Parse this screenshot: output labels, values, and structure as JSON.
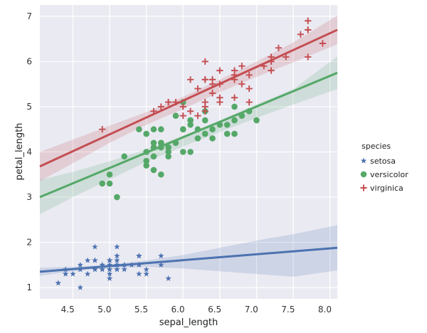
{
  "chart_data": {
    "type": "scatter",
    "xlabel": "sepal_length",
    "ylabel": "petal_length",
    "xlim": [
      4.05,
      8.1
    ],
    "ylim": [
      0.75,
      7.25
    ],
    "xticks": [
      "4.5",
      "5.0",
      "5.5",
      "6.0",
      "6.5",
      "7.0",
      "7.5",
      "8.0"
    ],
    "xtick_values": [
      4.5,
      5.0,
      5.5,
      6.0,
      6.5,
      7.0,
      7.5,
      8.0
    ],
    "xtick_label_offset": -0.07,
    "yticks": [
      "1",
      "2",
      "3",
      "4",
      "5",
      "6",
      "7"
    ],
    "ytick_values": [
      1,
      2,
      3,
      4,
      5,
      6,
      7
    ],
    "grid": true,
    "legend_placement": "right",
    "legend_title": "species",
    "series": [
      {
        "name": "setosa",
        "marker": "star",
        "color": "#4c72b0",
        "points": [
          [
            5.1,
            1.4
          ],
          [
            4.9,
            1.4
          ],
          [
            4.7,
            1.3
          ],
          [
            4.6,
            1.5
          ],
          [
            5.0,
            1.4
          ],
          [
            5.4,
            1.7
          ],
          [
            4.6,
            1.4
          ],
          [
            5.0,
            1.5
          ],
          [
            4.4,
            1.4
          ],
          [
            4.9,
            1.5
          ],
          [
            5.4,
            1.5
          ],
          [
            4.8,
            1.6
          ],
          [
            4.8,
            1.4
          ],
          [
            4.3,
            1.1
          ],
          [
            5.8,
            1.2
          ],
          [
            5.7,
            1.5
          ],
          [
            5.4,
            1.3
          ],
          [
            5.1,
            1.4
          ],
          [
            5.7,
            1.7
          ],
          [
            5.1,
            1.5
          ],
          [
            5.4,
            1.7
          ],
          [
            5.1,
            1.5
          ],
          [
            4.6,
            1.0
          ],
          [
            5.1,
            1.7
          ],
          [
            4.8,
            1.9
          ],
          [
            5.0,
            1.6
          ],
          [
            5.0,
            1.6
          ],
          [
            5.2,
            1.5
          ],
          [
            5.2,
            1.4
          ],
          [
            4.7,
            1.6
          ],
          [
            4.8,
            1.6
          ],
          [
            5.4,
            1.5
          ],
          [
            5.2,
            1.5
          ],
          [
            5.5,
            1.4
          ],
          [
            4.9,
            1.5
          ],
          [
            5.0,
            1.2
          ],
          [
            5.5,
            1.3
          ],
          [
            4.9,
            1.4
          ],
          [
            4.4,
            1.3
          ],
          [
            5.1,
            1.5
          ],
          [
            5.0,
            1.3
          ],
          [
            4.5,
            1.3
          ],
          [
            4.4,
            1.3
          ],
          [
            5.0,
            1.6
          ],
          [
            5.1,
            1.9
          ],
          [
            4.8,
            1.4
          ],
          [
            5.1,
            1.6
          ],
          [
            4.6,
            1.4
          ],
          [
            5.3,
            1.5
          ],
          [
            5.0,
            1.4
          ]
        ],
        "fit": [
          [
            4.05,
            1.35
          ],
          [
            8.1,
            1.88
          ]
        ],
        "band_x": [
          4.05,
          4.5,
          5.0,
          5.5,
          6.0,
          6.5,
          7.0,
          7.5,
          8.1
        ],
        "band_lo": [
          1.26,
          1.36,
          1.43,
          1.46,
          1.42,
          1.36,
          1.3,
          1.24,
          1.38
        ],
        "band_hi": [
          1.44,
          1.46,
          1.51,
          1.6,
          1.72,
          1.88,
          2.04,
          2.18,
          2.38
        ]
      },
      {
        "name": "versicolor",
        "marker": "circle",
        "color": "#55a868",
        "points": [
          [
            7.0,
            4.7
          ],
          [
            6.4,
            4.5
          ],
          [
            6.9,
            4.9
          ],
          [
            5.5,
            4.0
          ],
          [
            6.5,
            4.6
          ],
          [
            5.7,
            4.5
          ],
          [
            6.3,
            4.7
          ],
          [
            4.9,
            3.3
          ],
          [
            6.6,
            4.6
          ],
          [
            5.2,
            3.9
          ],
          [
            5.0,
            3.5
          ],
          [
            5.9,
            4.2
          ],
          [
            6.0,
            4.0
          ],
          [
            6.1,
            4.7
          ],
          [
            5.6,
            3.6
          ],
          [
            6.7,
            4.4
          ],
          [
            5.6,
            4.5
          ],
          [
            5.8,
            4.1
          ],
          [
            6.2,
            4.5
          ],
          [
            5.6,
            3.9
          ],
          [
            5.9,
            4.8
          ],
          [
            6.1,
            4.0
          ],
          [
            6.3,
            4.9
          ],
          [
            6.1,
            4.7
          ],
          [
            6.4,
            4.3
          ],
          [
            6.6,
            4.4
          ],
          [
            6.8,
            4.8
          ],
          [
            6.7,
            5.0
          ],
          [
            6.0,
            4.5
          ],
          [
            5.7,
            3.5
          ],
          [
            5.5,
            3.8
          ],
          [
            5.5,
            3.7
          ],
          [
            5.8,
            3.9
          ],
          [
            6.0,
            5.1
          ],
          [
            5.4,
            4.5
          ],
          [
            6.0,
            4.5
          ],
          [
            6.7,
            4.7
          ],
          [
            6.3,
            4.4
          ],
          [
            5.6,
            4.1
          ],
          [
            5.5,
            4.0
          ],
          [
            5.5,
            4.4
          ],
          [
            6.1,
            4.6
          ],
          [
            5.8,
            4.0
          ],
          [
            5.0,
            3.3
          ],
          [
            5.6,
            4.2
          ],
          [
            5.7,
            4.2
          ],
          [
            5.7,
            4.2
          ],
          [
            6.2,
            4.3
          ],
          [
            5.1,
            3.0
          ],
          [
            5.7,
            4.1
          ]
        ],
        "fit": [
          [
            4.05,
            3.0
          ],
          [
            8.1,
            5.75
          ]
        ],
        "band_x": [
          4.05,
          4.5,
          5.0,
          5.5,
          6.0,
          6.5,
          7.0,
          7.5,
          8.1
        ],
        "band_lo": [
          2.62,
          3.0,
          3.39,
          3.78,
          4.12,
          4.44,
          4.75,
          5.05,
          5.39
        ],
        "band_hi": [
          3.38,
          3.56,
          3.79,
          4.06,
          4.36,
          4.7,
          5.05,
          5.39,
          6.11
        ]
      },
      {
        "name": "virginica",
        "marker": "plus",
        "color": "#c44e52",
        "points": [
          [
            6.3,
            6.0
          ],
          [
            5.8,
            5.1
          ],
          [
            7.1,
            5.9
          ],
          [
            6.3,
            5.6
          ],
          [
            6.5,
            5.8
          ],
          [
            7.6,
            6.6
          ],
          [
            4.9,
            4.5
          ],
          [
            7.3,
            6.3
          ],
          [
            6.7,
            5.8
          ],
          [
            7.2,
            6.1
          ],
          [
            6.5,
            5.1
          ],
          [
            6.4,
            5.3
          ],
          [
            6.8,
            5.5
          ],
          [
            5.7,
            5.0
          ],
          [
            5.8,
            5.1
          ],
          [
            6.4,
            5.3
          ],
          [
            6.5,
            5.5
          ],
          [
            7.7,
            6.7
          ],
          [
            7.7,
            6.9
          ],
          [
            6.0,
            5.0
          ],
          [
            6.9,
            5.7
          ],
          [
            5.6,
            4.9
          ],
          [
            7.7,
            6.7
          ],
          [
            6.3,
            4.9
          ],
          [
            6.7,
            5.7
          ],
          [
            7.2,
            6.0
          ],
          [
            6.2,
            4.8
          ],
          [
            6.1,
            4.9
          ],
          [
            6.4,
            5.6
          ],
          [
            7.2,
            5.8
          ],
          [
            7.4,
            6.1
          ],
          [
            7.9,
            6.4
          ],
          [
            6.4,
            5.6
          ],
          [
            6.3,
            5.1
          ],
          [
            6.1,
            5.6
          ],
          [
            7.7,
            6.1
          ],
          [
            6.3,
            5.6
          ],
          [
            6.4,
            5.5
          ],
          [
            6.0,
            4.8
          ],
          [
            6.9,
            5.4
          ],
          [
            6.7,
            5.6
          ],
          [
            6.9,
            5.1
          ],
          [
            5.8,
            5.1
          ],
          [
            6.8,
            5.9
          ],
          [
            6.7,
            5.7
          ],
          [
            6.7,
            5.2
          ],
          [
            6.3,
            5.0
          ],
          [
            6.5,
            5.2
          ],
          [
            6.2,
            5.4
          ],
          [
            5.9,
            5.1
          ]
        ],
        "fit": [
          [
            4.05,
            3.68
          ],
          [
            8.1,
            6.7
          ]
        ],
        "band_x": [
          4.05,
          4.5,
          5.0,
          5.5,
          6.0,
          6.5,
          7.0,
          7.5,
          8.1
        ],
        "band_lo": [
          3.35,
          3.75,
          4.2,
          4.6,
          4.95,
          5.32,
          5.66,
          5.98,
          6.38
        ],
        "band_hi": [
          4.0,
          4.27,
          4.58,
          4.88,
          5.22,
          5.6,
          6.0,
          6.42,
          7.02
        ]
      }
    ]
  }
}
